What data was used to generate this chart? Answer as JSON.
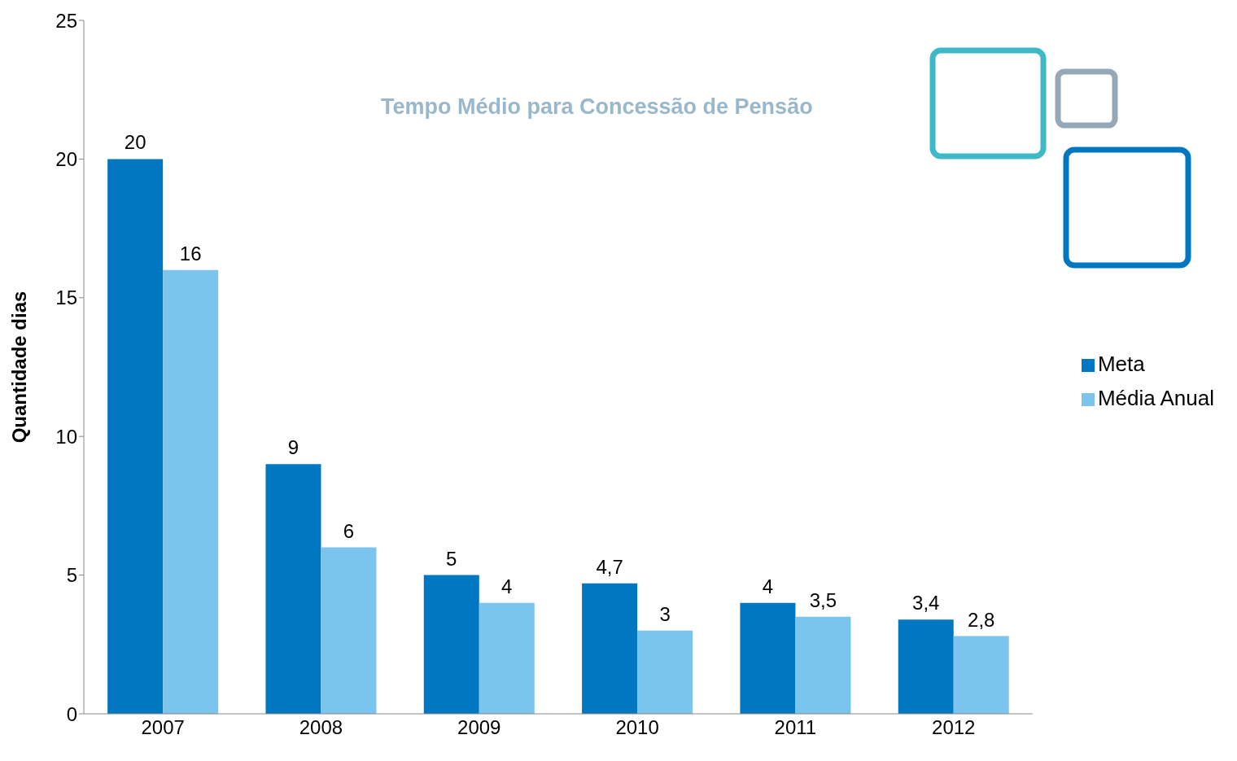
{
  "chart_data": {
    "type": "bar",
    "title": "Tempo Médio para Concessão de Pensão",
    "ylabel": "Quantidade dias",
    "categories": [
      "2007",
      "2008",
      "2009",
      "2010",
      "2011",
      "2012"
    ],
    "series": [
      {
        "name": "Meta",
        "color": "#0077c0",
        "values": [
          20,
          9,
          5,
          4.7,
          4,
          3.4
        ],
        "value_labels": [
          "20",
          "9",
          "5",
          "4,7",
          "4",
          "3,4"
        ]
      },
      {
        "name": "Média Anual",
        "color": "#7ac4ee",
        "values": [
          16,
          6,
          4,
          3,
          3.5,
          2.8
        ],
        "value_labels": [
          "16",
          "6",
          "4",
          "3",
          "3,5",
          "2,8"
        ]
      }
    ],
    "ylim": [
      0,
      25
    ],
    "yticks": [
      0,
      5,
      10,
      15,
      20,
      25
    ],
    "grid": false,
    "legend": "right"
  }
}
